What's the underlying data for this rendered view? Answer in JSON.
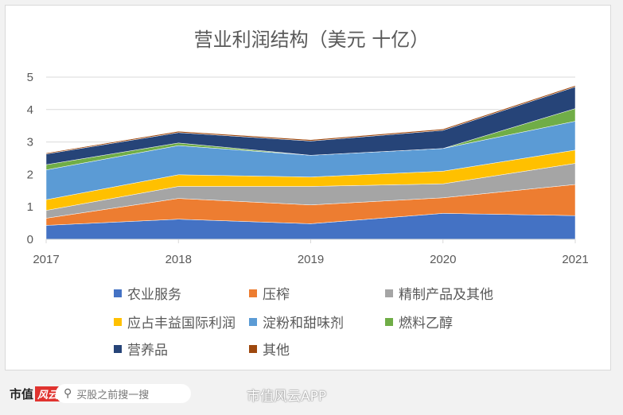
{
  "chart_data": {
    "type": "area",
    "stacked": true,
    "title": "营业利润结构（美元 十亿）",
    "categories": [
      "2017",
      "2018",
      "2019",
      "2020",
      "2021"
    ],
    "ylim": [
      0,
      5
    ],
    "yticks": [
      "0",
      "1",
      "2",
      "3",
      "4",
      "5"
    ],
    "grid": true,
    "legend_position": "bottom",
    "series": [
      {
        "name": "农业服务",
        "color": "#4472c4",
        "values": [
          0.43,
          0.62,
          0.48,
          0.8,
          0.73
        ]
      },
      {
        "name": "压榨",
        "color": "#ed7d31",
        "values": [
          0.22,
          0.64,
          0.58,
          0.48,
          0.96
        ]
      },
      {
        "name": "精制产品及其他",
        "color": "#a5a5a5",
        "values": [
          0.24,
          0.37,
          0.57,
          0.43,
          0.65
        ]
      },
      {
        "name": "应占丰益国际利润",
        "color": "#ffc000",
        "values": [
          0.33,
          0.36,
          0.29,
          0.39,
          0.41
        ]
      },
      {
        "name": "淀粉和甜味剂",
        "color": "#5b9bd5",
        "values": [
          0.92,
          0.9,
          0.67,
          0.7,
          0.89
        ]
      },
      {
        "name": "燃料乙醇",
        "color": "#70ad47",
        "values": [
          0.16,
          0.08,
          0.0,
          0.0,
          0.39
        ]
      },
      {
        "name": "营养品",
        "color": "#264478",
        "values": [
          0.33,
          0.32,
          0.44,
          0.56,
          0.67
        ]
      },
      {
        "name": "其他",
        "color": "#9e480e",
        "values": [
          0.03,
          0.04,
          0.04,
          0.04,
          0.04
        ]
      }
    ]
  },
  "footer": {
    "logo_text": "市值",
    "logo_red": "风云",
    "search_icon": "search-icon",
    "search_placeholder": "买股之前搜一搜",
    "watermark": "市值风云APP"
  }
}
